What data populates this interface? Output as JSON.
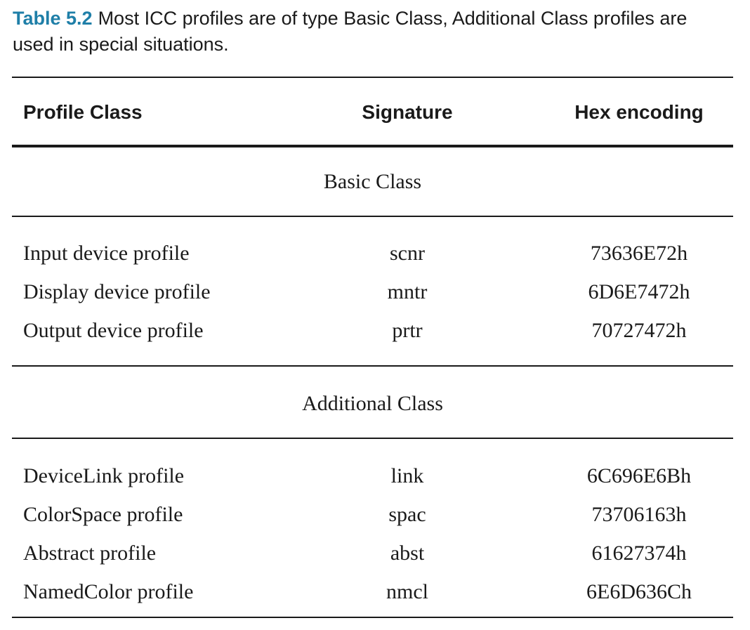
{
  "caption": {
    "label": "Table 5.2",
    "text": "Most ICC profiles are of type Basic Class, Additional Class profiles are used in special situations."
  },
  "table": {
    "headers": [
      "Profile Class",
      "Signature",
      "Hex encoding"
    ],
    "groups": [
      {
        "title": "Basic Class",
        "rows": [
          [
            "Input device profile",
            "scnr",
            "73636E72h"
          ],
          [
            "Display device profile",
            "mntr",
            "6D6E7472h"
          ],
          [
            "Output device profile",
            "prtr",
            "70727472h"
          ]
        ]
      },
      {
        "title": "Additional Class",
        "rows": [
          [
            "DeviceLink profile",
            "link",
            "6C696E6Bh"
          ],
          [
            "ColorSpace profile",
            "spac",
            "73706163h"
          ],
          [
            "Abstract profile",
            "abst",
            "61627374h"
          ],
          [
            "NamedColor profile",
            "nmcl",
            "6E6D636Ch"
          ]
        ]
      }
    ]
  }
}
